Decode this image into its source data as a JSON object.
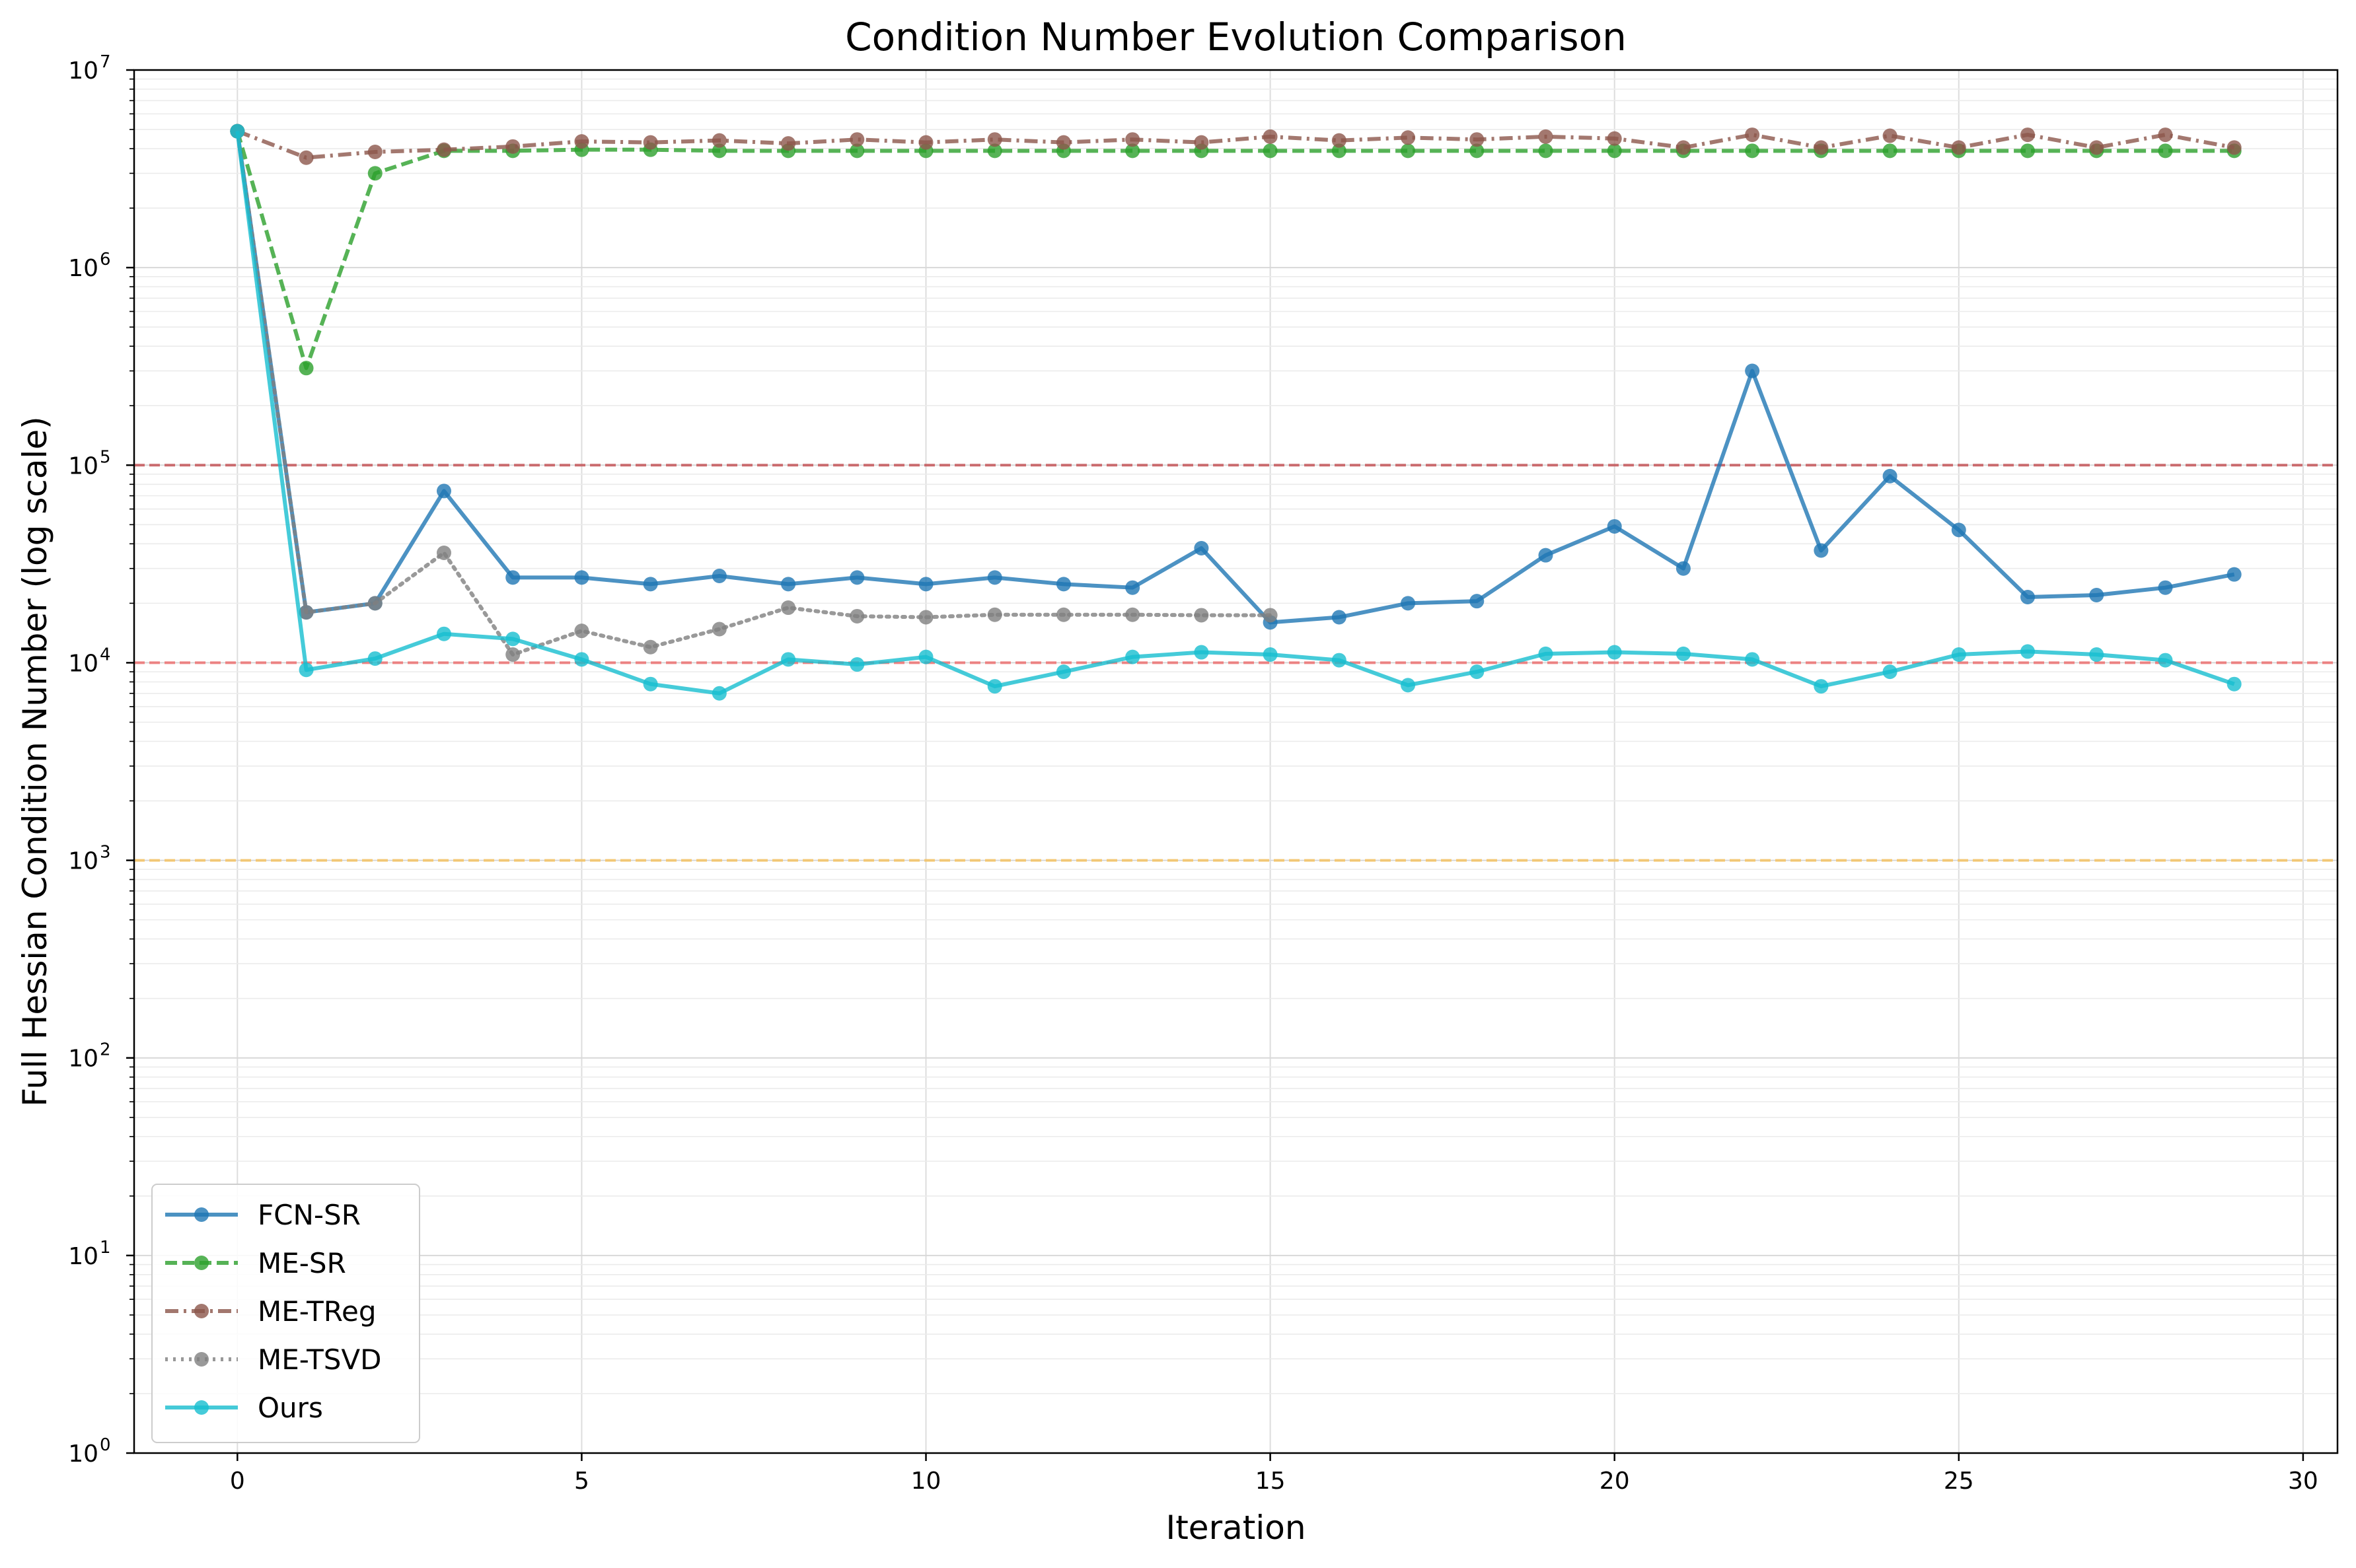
{
  "chart_data": {
    "type": "line",
    "title": "Condition Number Evolution Comparison",
    "xlabel": "Iteration",
    "ylabel": "Full Hessian Condition Number (log scale)",
    "yscale": "log",
    "xlim": [
      -1.5,
      30.5
    ],
    "ylim": [
      1,
      10000000
    ],
    "x_ticks": [
      "0",
      "5",
      "10",
      "15",
      "20",
      "25",
      "30"
    ],
    "y_ticks": [
      {
        "base": "10",
        "exp": "0"
      },
      {
        "base": "10",
        "exp": "1"
      },
      {
        "base": "10",
        "exp": "2"
      },
      {
        "base": "10",
        "exp": "3"
      },
      {
        "base": "10",
        "exp": "4"
      },
      {
        "base": "10",
        "exp": "5"
      },
      {
        "base": "10",
        "exp": "6"
      },
      {
        "base": "10",
        "exp": "7"
      }
    ],
    "grid": true,
    "legend_position": "lower-left",
    "reference_lines": [
      {
        "value": 100000,
        "color": "#c44e52"
      },
      {
        "value": 10000,
        "color": "#ee6b6b"
      },
      {
        "value": 1000,
        "color": "#f5c15c"
      }
    ],
    "series": [
      {
        "name": "FCN-SR",
        "color": "#1f77b4",
        "dash": "solid",
        "x": [
          0,
          1,
          2,
          3,
          4,
          5,
          6,
          7,
          8,
          9,
          10,
          11,
          12,
          13,
          14,
          15,
          16,
          17,
          18,
          19,
          20,
          21,
          22,
          23,
          24,
          25,
          26,
          27,
          28,
          29
        ],
        "values": [
          4900000,
          18000,
          20000,
          74000,
          27000,
          27000,
          25000,
          27500,
          25000,
          27000,
          25000,
          27000,
          25000,
          24000,
          38000,
          16000,
          17000,
          20000,
          20500,
          35000,
          49000,
          30000,
          300000,
          37000,
          88000,
          47000,
          21500,
          22000,
          24000,
          28000
        ]
      },
      {
        "name": "ME-SR",
        "color": "#2ca02c",
        "dash": "dashed",
        "x": [
          0,
          1,
          2,
          3,
          4,
          5,
          6,
          7,
          8,
          9,
          10,
          11,
          12,
          13,
          14,
          15,
          16,
          17,
          18,
          19,
          20,
          21,
          22,
          23,
          24,
          25,
          26,
          27,
          28,
          29
        ],
        "values": [
          4900000,
          310000,
          3000000,
          3900000,
          3900000,
          3950000,
          3950000,
          3900000,
          3900000,
          3900000,
          3900000,
          3900000,
          3900000,
          3900000,
          3900000,
          3900000,
          3900000,
          3900000,
          3900000,
          3900000,
          3900000,
          3900000,
          3900000,
          3900000,
          3900000,
          3900000,
          3900000,
          3900000,
          3900000,
          3900000
        ]
      },
      {
        "name": "ME-TReg",
        "color": "#8c564b",
        "dash": "dashdot",
        "x": [
          0,
          1,
          2,
          3,
          4,
          5,
          6,
          7,
          8,
          9,
          10,
          11,
          12,
          13,
          14,
          15,
          16,
          17,
          18,
          19,
          20,
          21,
          22,
          23,
          24,
          25,
          26,
          27,
          28,
          29
        ],
        "values": [
          4900000,
          3600000,
          3850000,
          3950000,
          4100000,
          4350000,
          4300000,
          4400000,
          4250000,
          4450000,
          4300000,
          4450000,
          4300000,
          4450000,
          4300000,
          4600000,
          4400000,
          4550000,
          4450000,
          4600000,
          4500000,
          4050000,
          4700000,
          4050000,
          4650000,
          4050000,
          4700000,
          4050000,
          4700000,
          4050000
        ]
      },
      {
        "name": "ME-TSVD",
        "color": "#7f7f7f",
        "dash": "dotted",
        "x": [
          0,
          1,
          2,
          3,
          4,
          5,
          6,
          7,
          8,
          9,
          10,
          11,
          12,
          13,
          14,
          15
        ],
        "values": [
          4900000,
          18000,
          20000,
          36000,
          11000,
          14500,
          12000,
          14800,
          19000,
          17200,
          17000,
          17500,
          17500,
          17500,
          17400,
          17400
        ]
      },
      {
        "name": "Ours",
        "color": "#17becf",
        "dash": "solid",
        "x": [
          0,
          1,
          2,
          3,
          4,
          5,
          6,
          7,
          8,
          9,
          10,
          11,
          12,
          13,
          14,
          15,
          16,
          17,
          18,
          19,
          20,
          21,
          22,
          23,
          24,
          25,
          26,
          27,
          28,
          29
        ],
        "values": [
          4900000,
          9200,
          10500,
          14000,
          13200,
          10400,
          7800,
          7000,
          10400,
          9800,
          10700,
          7600,
          9000,
          10700,
          11300,
          11000,
          10300,
          7700,
          9000,
          11100,
          11300,
          11100,
          10400,
          7600,
          9000,
          11000,
          11400,
          11000,
          10300,
          7800
        ]
      }
    ]
  }
}
